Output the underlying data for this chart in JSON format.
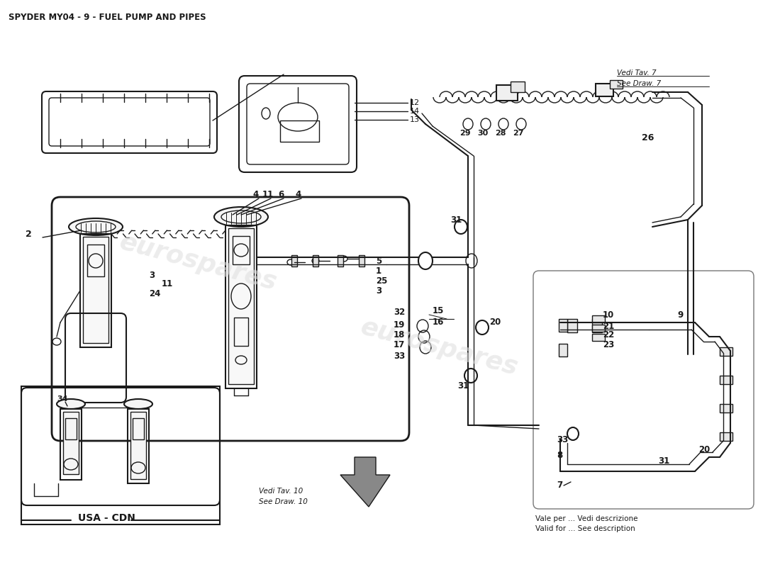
{
  "title": "SPYDER MY04 - 9 - FUEL PUMP AND PIPES",
  "title_fontsize": 8.5,
  "bg_color": "#ffffff",
  "line_color": "#1a1a1a",
  "watermark_text": "eurospares",
  "watermark_color": "#e0e0e0",
  "usa_cdn_label": "USA - CDN",
  "vedi_tav7_line1": "Vedi Tav. 7",
  "vedi_tav7_line2": "See Draw. 7",
  "vedi_tav10_line1": "Vedi Tav. 10",
  "vedi_tav10_line2": "See Draw. 10",
  "vale_per_line1": "Vale per ... Vedi descrizione",
  "vale_per_line2": "Valid for ... See description"
}
